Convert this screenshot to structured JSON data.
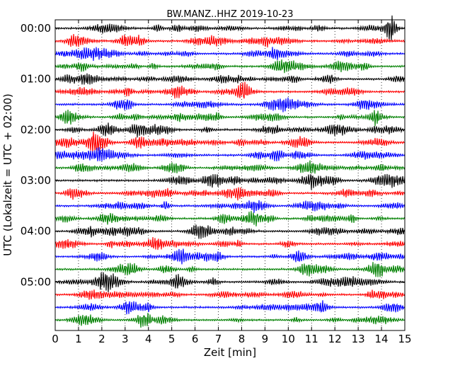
{
  "chart_data": {
    "type": "line",
    "title": "BW.MANZ..HHZ 2019-10-23",
    "xlabel": "Zeit  [min]",
    "ylabel": "UTC (Lokalzeit = UTC + 02:00)",
    "xlim": [
      0,
      15
    ],
    "x_ticks": [
      "0",
      "1",
      "2",
      "3",
      "4",
      "5",
      "6",
      "7",
      "8",
      "9",
      "10",
      "11",
      "12",
      "13",
      "14",
      "15"
    ],
    "y_ticks": [
      "00:00",
      "01:00",
      "02:00",
      "03:00",
      "04:00",
      "05:00"
    ],
    "minutes_per_line": 15,
    "start_time": "00:00",
    "end_time": "06:00",
    "line_count": 24,
    "grid": "vertical dotted lines at each minute",
    "trace_colors": [
      "#000000",
      "#ff0000",
      "#0000ff",
      "#008000"
    ]
  }
}
